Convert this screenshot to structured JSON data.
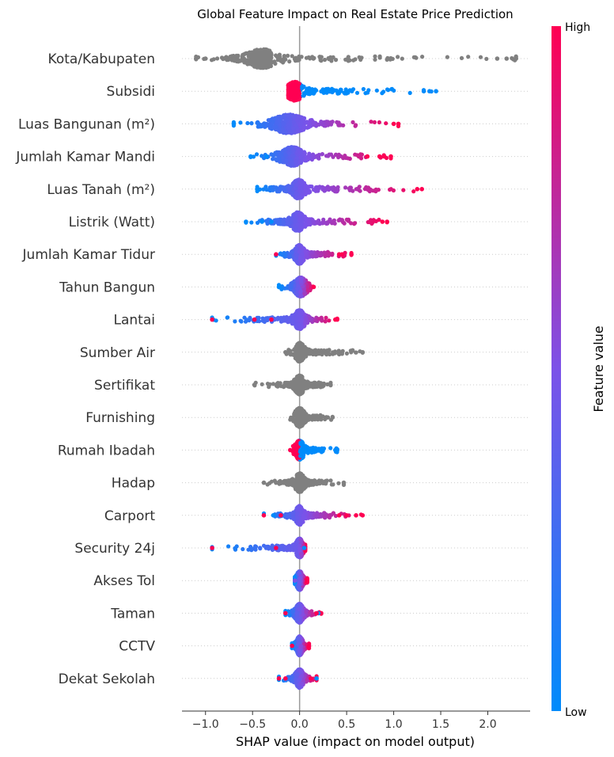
{
  "chart_data": {
    "type": "scatter",
    "title": "Global Feature Impact on Real Estate Price Prediction",
    "xlabel": "SHAP value (impact on model output)",
    "xlim": [
      -1.25,
      2.45
    ],
    "x_ticks": [
      -1.0,
      -0.5,
      0.0,
      0.5,
      1.0,
      1.5,
      2.0
    ],
    "x_tick_labels": [
      "−1.0",
      "−0.5",
      "0.0",
      "0.5",
      "1.0",
      "1.5",
      "2.0"
    ],
    "grid": false,
    "colorbar": {
      "title": "Feature value",
      "high_label": "High",
      "low_label": "Low",
      "low_color": "#008bfb",
      "mid_color": "#7c52e8",
      "high_color": "#ff0052"
    },
    "no_value_color": "#808080",
    "features": [
      {
        "name": "Kota/Kabupaten",
        "coloring": "gray",
        "min": -1.1,
        "max": 2.3,
        "core": [
          -0.48,
          -0.3
        ],
        "peak": -0.4,
        "outliers": [
          [
            -1.1,
            "n"
          ],
          [
            2.3,
            "n"
          ],
          [
            2.2,
            "n"
          ],
          [
            2.1,
            "n"
          ],
          [
            -1.0,
            "n"
          ]
        ]
      },
      {
        "name": "Subsidi",
        "coloring": "split",
        "min": -0.12,
        "max": 1.45,
        "core": [
          -0.1,
          0.0
        ],
        "peak": -0.05,
        "outliers": [
          [
            0.08,
            "l"
          ],
          [
            1.45,
            "l"
          ],
          [
            1.38,
            "l"
          ],
          [
            1.32,
            "l"
          ]
        ]
      },
      {
        "name": "Luas Bangunan (m²)",
        "coloring": "gradient",
        "min": -0.7,
        "max": 1.05,
        "core": [
          -0.15,
          0.05
        ],
        "peak": -0.12,
        "outliers": [
          [
            -0.7,
            "l"
          ],
          [
            1.05,
            "h"
          ],
          [
            1.0,
            "h"
          ]
        ]
      },
      {
        "name": "Jumlah Kamar Mandi",
        "coloring": "gradient",
        "min": -0.52,
        "max": 0.97,
        "core": [
          -0.12,
          0.02
        ],
        "peak": -0.08,
        "outliers": [
          [
            -0.52,
            "l"
          ],
          [
            -0.35,
            "l"
          ],
          [
            0.97,
            "h"
          ],
          [
            0.9,
            "h"
          ],
          [
            0.85,
            "h"
          ],
          [
            0.72,
            "h"
          ]
        ]
      },
      {
        "name": "Luas Tanah (m²)",
        "coloring": "gradient",
        "min": -0.45,
        "max": 1.3,
        "core": [
          -0.05,
          0.03
        ],
        "peak": -0.01,
        "outliers": [
          [
            -0.45,
            "l"
          ],
          [
            1.3,
            "h"
          ],
          [
            1.25,
            "h"
          ]
        ]
      },
      {
        "name": "Listrik (Watt)",
        "coloring": "gradient",
        "min": -0.57,
        "max": 0.93,
        "core": [
          -0.05,
          0.03
        ],
        "peak": -0.02,
        "outliers": [
          [
            -0.57,
            "l"
          ],
          [
            -0.4,
            "l"
          ],
          [
            -0.3,
            "l"
          ],
          [
            0.93,
            "h"
          ],
          [
            0.88,
            "h"
          ]
        ]
      },
      {
        "name": "Jumlah Kamar Tidur",
        "coloring": "gradient",
        "min": -0.25,
        "max": 0.55,
        "core": [
          -0.03,
          0.03
        ],
        "peak": 0.0,
        "outliers": [
          [
            -0.25,
            "h"
          ],
          [
            0.55,
            "h"
          ],
          [
            0.45,
            "h"
          ],
          [
            0.42,
            "h"
          ]
        ]
      },
      {
        "name": "Tahun Bangun",
        "coloring": "gradient",
        "min": -0.22,
        "max": 0.15,
        "core": [
          -0.03,
          0.05
        ],
        "peak": 0.01,
        "outliers": [
          [
            -0.22,
            "l"
          ],
          [
            0.15,
            "h"
          ]
        ]
      },
      {
        "name": "Lantai",
        "coloring": "gradient",
        "min": -0.93,
        "max": 0.4,
        "core": [
          -0.04,
          0.03
        ],
        "peak": 0.0,
        "outliers": [
          [
            -0.93,
            "h"
          ],
          [
            -0.48,
            "h"
          ],
          [
            -0.3,
            "h"
          ],
          [
            0.4,
            "h"
          ],
          [
            0.38,
            "h"
          ]
        ]
      },
      {
        "name": "Sumber Air",
        "coloring": "gray",
        "min": -0.15,
        "max": 0.67,
        "core": [
          -0.03,
          0.03
        ],
        "peak": 0.0,
        "outliers": [
          [
            0.67,
            "n"
          ],
          [
            -0.15,
            "n"
          ],
          [
            0.25,
            "n"
          ]
        ]
      },
      {
        "name": "Sertifikat",
        "coloring": "gray",
        "min": -0.48,
        "max": 0.33,
        "core": [
          -0.03,
          0.03
        ],
        "peak": 0.0,
        "outliers": [
          [
            -0.48,
            "n"
          ],
          [
            0.33,
            "n"
          ]
        ]
      },
      {
        "name": "Furnishing",
        "coloring": "gray",
        "min": -0.1,
        "max": 0.35,
        "core": [
          -0.03,
          0.03
        ],
        "peak": 0.0,
        "outliers": [
          [
            0.35,
            "n"
          ],
          [
            0.3,
            "n"
          ]
        ]
      },
      {
        "name": "Rumah Ibadah",
        "coloring": "split_rev",
        "min": -0.1,
        "max": 0.4,
        "core": [
          -0.03,
          0.03
        ],
        "peak": 0.0,
        "outliers": [
          [
            -0.1,
            "h"
          ],
          [
            0.38,
            "l"
          ],
          [
            0.4,
            "l"
          ],
          [
            0.1,
            "l"
          ]
        ]
      },
      {
        "name": "Hadap",
        "coloring": "gray",
        "min": -0.38,
        "max": 0.47,
        "core": [
          -0.03,
          0.03
        ],
        "peak": 0.0,
        "outliers": [
          [
            -0.38,
            "n"
          ],
          [
            0.47,
            "n"
          ],
          [
            -0.25,
            "n"
          ]
        ]
      },
      {
        "name": "Carport",
        "coloring": "gradient",
        "min": -0.38,
        "max": 0.67,
        "core": [
          -0.03,
          0.02
        ],
        "peak": 0.0,
        "outliers": [
          [
            -0.38,
            "h"
          ],
          [
            -0.28,
            "l"
          ],
          [
            -0.2,
            "h"
          ],
          [
            0.67,
            "h"
          ],
          [
            0.6,
            "h"
          ],
          [
            0.5,
            "h"
          ],
          [
            0.42,
            "h"
          ]
        ]
      },
      {
        "name": "Security 24j",
        "coloring": "gradient",
        "min": -0.93,
        "max": 0.06,
        "core": [
          -0.03,
          0.02
        ],
        "peak": 0.0,
        "outliers": [
          [
            -0.93,
            "h"
          ],
          [
            -0.25,
            "h"
          ],
          [
            0.05,
            "l"
          ]
        ]
      },
      {
        "name": "Akses Tol",
        "coloring": "gradient",
        "min": -0.05,
        "max": 0.08,
        "core": [
          -0.02,
          0.02
        ],
        "peak": 0.0,
        "outliers": [
          [
            0.08,
            "h"
          ],
          [
            -0.05,
            "m"
          ]
        ]
      },
      {
        "name": "Taman",
        "coloring": "gradient",
        "min": -0.15,
        "max": 0.23,
        "core": [
          -0.03,
          0.02
        ],
        "peak": 0.0,
        "outliers": [
          [
            -0.15,
            "h"
          ],
          [
            0.23,
            "h"
          ],
          [
            0.2,
            "l"
          ],
          [
            0.18,
            "h"
          ]
        ]
      },
      {
        "name": "CCTV",
        "coloring": "gradient",
        "min": -0.08,
        "max": 0.1,
        "core": [
          -0.02,
          0.02
        ],
        "peak": 0.0,
        "outliers": [
          [
            -0.08,
            "h"
          ],
          [
            0.1,
            "h"
          ]
        ]
      },
      {
        "name": "Dekat Sekolah",
        "coloring": "gradient",
        "min": -0.22,
        "max": 0.18,
        "core": [
          -0.03,
          0.02
        ],
        "peak": 0.0,
        "outliers": [
          [
            -0.22,
            "h"
          ],
          [
            0.18,
            "l"
          ],
          [
            -0.15,
            "h"
          ],
          [
            0.12,
            "h"
          ]
        ]
      }
    ]
  }
}
